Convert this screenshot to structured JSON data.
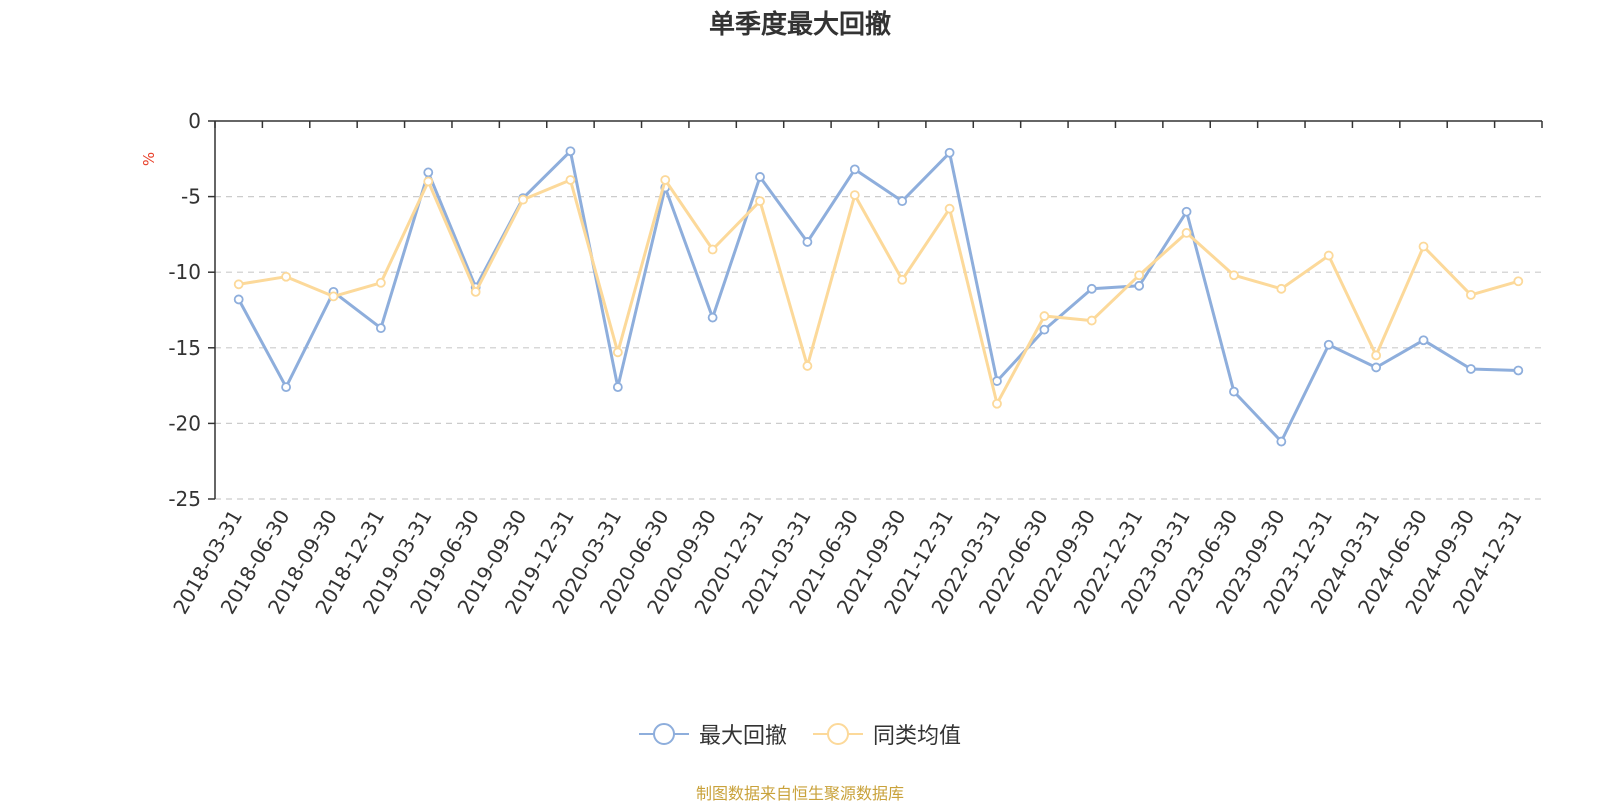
{
  "chart_data": {
    "type": "line",
    "title": "单季度最大回撤",
    "ylabel": "%",
    "ylim": [
      -25,
      0
    ],
    "yticks": [
      0,
      -5,
      -10,
      -15,
      -20,
      -25
    ],
    "grid": true,
    "legend_position": "bottom-center",
    "categories": [
      "2018-03-31",
      "2018-06-30",
      "2018-09-30",
      "2018-12-31",
      "2019-03-31",
      "2019-06-30",
      "2019-09-30",
      "2019-12-31",
      "2020-03-31",
      "2020-06-30",
      "2020-09-30",
      "2020-12-31",
      "2021-03-31",
      "2021-06-30",
      "2021-09-30",
      "2021-12-31",
      "2022-03-31",
      "2022-06-30",
      "2022-09-30",
      "2022-12-31",
      "2023-03-31",
      "2023-06-30",
      "2023-09-30",
      "2023-12-31",
      "2024-03-31",
      "2024-06-30",
      "2024-09-30",
      "2024-12-31"
    ],
    "series": [
      {
        "name": "最大回撤",
        "color": "#8eaedc",
        "values": [
          -11.8,
          -17.6,
          -11.3,
          -13.7,
          -3.4,
          -11.0,
          -5.1,
          -2.0,
          -17.6,
          -4.4,
          -13.0,
          -3.7,
          -8.0,
          -3.2,
          -5.3,
          -2.1,
          -17.2,
          -13.8,
          -11.1,
          -10.9,
          -6.0,
          -17.9,
          -21.2,
          -14.8,
          -16.3,
          -14.5,
          -16.4,
          -16.5
        ]
      },
      {
        "name": "同类均值",
        "color": "#fcd99a",
        "values": [
          -10.8,
          -10.3,
          -11.6,
          -10.7,
          -4.0,
          -11.3,
          -5.2,
          -3.9,
          -15.3,
          -3.9,
          -8.5,
          -5.3,
          -16.2,
          -4.9,
          -10.5,
          -5.8,
          -18.7,
          -12.9,
          -13.2,
          -10.2,
          -7.4,
          -10.2,
          -11.1,
          -8.9,
          -15.5,
          -8.3,
          -11.5,
          -10.6
        ]
      }
    ]
  },
  "source_text": "制图数据来自恒生聚源数据库"
}
